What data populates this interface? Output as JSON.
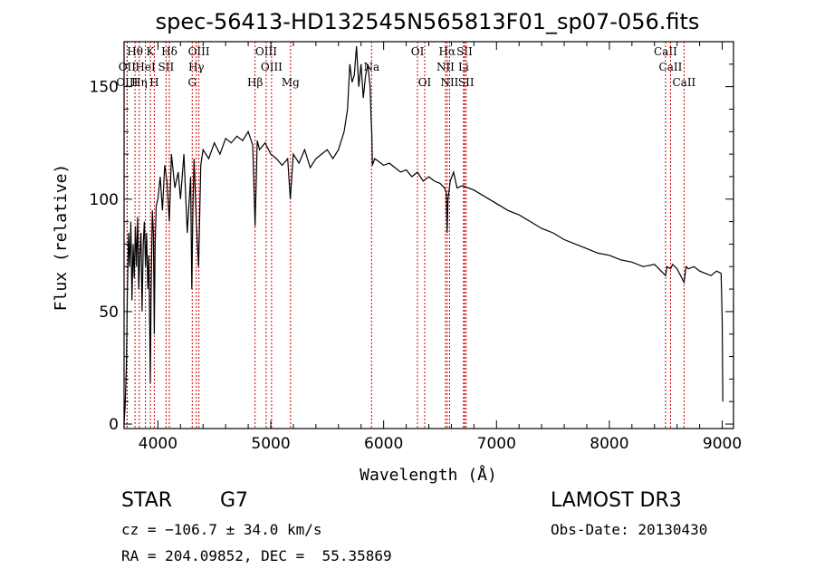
{
  "chart_data": {
    "type": "line",
    "title": "spec-56413-HD132545N565813F01_sp07-056.fits",
    "xlabel": "Wavelength (Å)",
    "ylabel": "Flux (relative)",
    "xlim": [
      3700,
      9100
    ],
    "ylim": [
      -2,
      170
    ],
    "xticks": [
      4000,
      5000,
      6000,
      7000,
      8000,
      9000
    ],
    "yticks": [
      0,
      50,
      100,
      150
    ],
    "series": [
      {
        "name": "spectrum",
        "x": [
          3700,
          3710,
          3720,
          3730,
          3740,
          3750,
          3760,
          3770,
          3780,
          3790,
          3800,
          3810,
          3820,
          3830,
          3840,
          3850,
          3860,
          3870,
          3880,
          3890,
          3900,
          3910,
          3920,
          3930,
          3933,
          3940,
          3950,
          3960,
          3968,
          3975,
          3985,
          4000,
          4020,
          4040,
          4060,
          4080,
          4101,
          4120,
          4150,
          4180,
          4200,
          4230,
          4260,
          4290,
          4300,
          4310,
          4320,
          4340,
          4360,
          4380,
          4400,
          4450,
          4500,
          4550,
          4600,
          4650,
          4700,
          4750,
          4800,
          4840,
          4861,
          4880,
          4900,
          4950,
          5000,
          5050,
          5100,
          5150,
          5173,
          5200,
          5250,
          5300,
          5350,
          5400,
          5450,
          5500,
          5550,
          5600,
          5650,
          5680,
          5700,
          5720,
          5740,
          5760,
          5780,
          5800,
          5820,
          5840,
          5860,
          5880,
          5890,
          5896,
          5900,
          5920,
          5950,
          6000,
          6050,
          6100,
          6150,
          6200,
          6250,
          6300,
          6350,
          6400,
          6450,
          6500,
          6540,
          6555,
          6563,
          6570,
          6590,
          6620,
          6650,
          6700,
          6800,
          6900,
          7000,
          7100,
          7200,
          7300,
          7400,
          7500,
          7600,
          7700,
          7800,
          7900,
          8000,
          8100,
          8200,
          8300,
          8400,
          8498,
          8510,
          8542,
          8560,
          8600,
          8662,
          8680,
          8700,
          8750,
          8800,
          8850,
          8900,
          8950,
          8990,
          9000,
          9005
        ],
        "y": [
          0,
          8,
          25,
          60,
          85,
          70,
          90,
          55,
          80,
          65,
          88,
          70,
          92,
          60,
          75,
          85,
          50,
          80,
          90,
          70,
          85,
          60,
          75,
          30,
          18,
          60,
          95,
          85,
          40,
          80,
          97,
          100,
          110,
          95,
          115,
          108,
          90,
          120,
          105,
          112,
          100,
          120,
          85,
          110,
          60,
          95,
          118,
          90,
          70,
          115,
          122,
          118,
          125,
          120,
          127,
          125,
          128,
          126,
          130,
          124,
          88,
          126,
          122,
          125,
          120,
          118,
          115,
          118,
          100,
          120,
          116,
          122,
          114,
          118,
          120,
          122,
          118,
          122,
          130,
          140,
          160,
          152,
          155,
          168,
          150,
          160,
          145,
          155,
          160,
          150,
          135,
          128,
          115,
          118,
          117,
          115,
          116,
          114,
          112,
          113,
          110,
          112,
          108,
          110,
          108,
          107,
          105,
          103,
          85,
          100,
          108,
          112,
          105,
          106,
          104,
          101,
          98,
          95,
          93,
          90,
          87,
          85,
          82,
          80,
          78,
          76,
          75,
          73,
          72,
          70,
          71,
          66,
          70,
          69,
          71,
          69,
          63,
          70,
          69,
          70,
          68,
          67,
          66,
          68,
          67,
          47,
          10
        ]
      }
    ],
    "spectral_lines": [
      {
        "name": "Hθ",
        "wavelength": 3797,
        "row": 0
      },
      {
        "name": "K",
        "wavelength": 3933,
        "row": 0
      },
      {
        "name": "Hδ",
        "wavelength": 4101,
        "row": 0
      },
      {
        "name": "OIII",
        "wavelength": 4363,
        "row": 0
      },
      {
        "name": "OIII",
        "wavelength": 4959,
        "row": 0
      },
      {
        "name": "OI",
        "wavelength": 6300,
        "row": 0
      },
      {
        "name": "Hα",
        "wavelength": 6563,
        "row": 0
      },
      {
        "name": "SII",
        "wavelength": 6717,
        "row": 0
      },
      {
        "name": "CaII",
        "wavelength": 8498,
        "row": 0
      },
      {
        "name": "OII",
        "wavelength": 3727,
        "row": 1
      },
      {
        "name": "HeI",
        "wavelength": 3889,
        "row": 1
      },
      {
        "name": "SII",
        "wavelength": 4072,
        "row": 1
      },
      {
        "name": "Hγ",
        "wavelength": 4340,
        "row": 1
      },
      {
        "name": "OIII",
        "wavelength": 5007,
        "row": 1
      },
      {
        "name": "Na",
        "wavelength": 5893,
        "row": 1
      },
      {
        "name": "NII",
        "wavelength": 6548,
        "row": 1
      },
      {
        "name": "Li",
        "wavelength": 6708,
        "row": 1
      },
      {
        "name": "CaII",
        "wavelength": 8542,
        "row": 1
      },
      {
        "name": "OIII",
        "wavelength": 3727,
        "row": 2
      },
      {
        "name": "Hη",
        "wavelength": 3835,
        "row": 2
      },
      {
        "name": "H",
        "wavelength": 3968,
        "row": 2
      },
      {
        "name": "G",
        "wavelength": 4304,
        "row": 2
      },
      {
        "name": "Hβ",
        "wavelength": 4861,
        "row": 2
      },
      {
        "name": "Mg",
        "wavelength": 5175,
        "row": 2
      },
      {
        "name": "OI",
        "wavelength": 6364,
        "row": 2
      },
      {
        "name": "NII",
        "wavelength": 6584,
        "row": 2
      },
      {
        "name": "SII",
        "wavelength": 6731,
        "row": 2
      },
      {
        "name": "CaII",
        "wavelength": 8662,
        "row": 2
      }
    ]
  },
  "info": {
    "object_class": "STAR",
    "subclass": "G7",
    "survey": "LAMOST DR3",
    "cz": "cz = −106.7 ± 34.0 km/s",
    "obs_date": "Obs-Date: 20130430",
    "coords": "RA = 204.09852, DEC =  55.35869"
  }
}
